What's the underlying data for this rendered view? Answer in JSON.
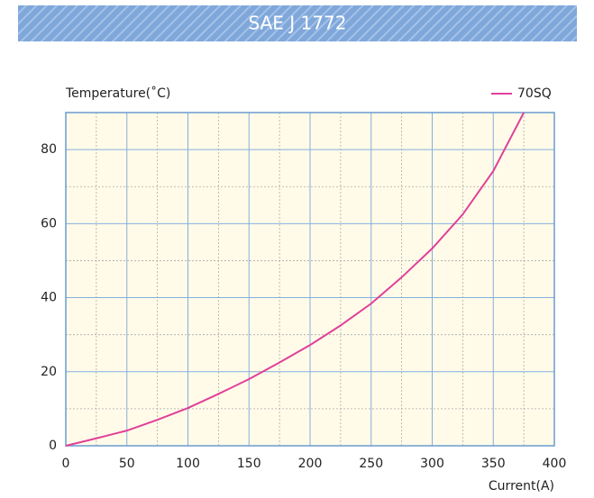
{
  "chart_data": {
    "type": "line",
    "title": "SAE J 1772",
    "y_label": "Temperature(˚C)",
    "x_label": "Current(A)",
    "x": [
      0,
      25,
      50,
      75,
      100,
      125,
      150,
      175,
      200,
      225,
      250,
      275,
      300,
      325,
      350,
      375
    ],
    "series": [
      {
        "name": "70SQ",
        "color": "#e0409a",
        "values": [
          0,
          2,
          4.1,
          7,
          10.2,
          14,
          18,
          22.5,
          27.2,
          32.5,
          38.4,
          45.5,
          53.3,
          62.5,
          74.2,
          90
        ]
      }
    ],
    "xlim": [
      0,
      400
    ],
    "xticks": [
      0,
      50,
      100,
      150,
      200,
      250,
      300,
      350,
      400
    ],
    "ylim": [
      0,
      90
    ],
    "yticks": [
      0,
      20,
      40,
      60,
      80
    ],
    "grid": true,
    "legend": "top-right"
  }
}
